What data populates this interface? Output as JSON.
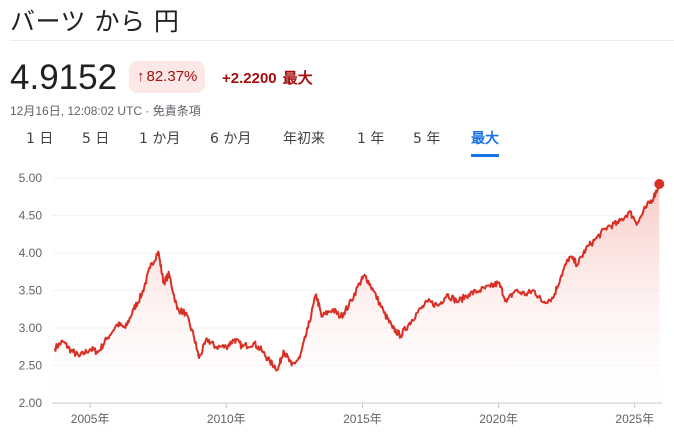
{
  "header": {
    "title": "バーツ から 円",
    "price": "4.9152",
    "change_pct": "82.37%",
    "change_arrow": "↑",
    "change_abs": "+2.2200",
    "change_period": "最大",
    "timestamp": "12月16日, 12:08:02 UTC · 免責条項"
  },
  "tabs": [
    {
      "label": "1 日",
      "active": false
    },
    {
      "label": "5 日",
      "active": false
    },
    {
      "label": "1 か月",
      "active": false
    },
    {
      "label": "6 か月",
      "active": false
    },
    {
      "label": "年初来",
      "active": false
    },
    {
      "label": "1 年",
      "active": false
    },
    {
      "label": "5 年",
      "active": false
    },
    {
      "label": "最大",
      "active": true
    }
  ],
  "colors": {
    "line": "#d93025",
    "fill_top": "#f8c5c0",
    "fill_bottom": "#ffffff",
    "active_tab": "#1a73e8",
    "negative": "#a50e0e"
  },
  "chart_data": {
    "type": "area",
    "ylim": [
      2.0,
      5.0
    ],
    "yticks": [
      "5.00",
      "4.50",
      "4.00",
      "3.50",
      "3.00",
      "2.50",
      "2.00"
    ],
    "ytick_values": [
      5.0,
      4.5,
      4.0,
      3.5,
      3.0,
      2.5,
      2.0
    ],
    "xlim": [
      2003.6,
      2026.0
    ],
    "xticks": [
      "2005年",
      "2010年",
      "2015年",
      "2020年",
      "2025年"
    ],
    "xtick_values": [
      2005,
      2010,
      2015,
      2020,
      2025
    ],
    "grid": true,
    "series": [
      {
        "x": [
          2003.7,
          2004.0,
          2004.3,
          2004.6,
          2005.0,
          2005.3,
          2005.6,
          2006.0,
          2006.3,
          2006.6,
          2006.9,
          2007.2,
          2007.5,
          2007.7,
          2007.9,
          2008.2,
          2008.5,
          2008.8,
          2009.0,
          2009.3,
          2009.6,
          2010.0,
          2010.3,
          2010.6,
          2011.0,
          2011.3,
          2011.6,
          2011.9,
          2012.1,
          2012.4,
          2012.7,
          2013.0,
          2013.3,
          2013.5,
          2013.9,
          2014.2,
          2014.5,
          2014.9,
          2015.1,
          2015.4,
          2015.8,
          2016.1,
          2016.4,
          2016.7,
          2017.0,
          2017.4,
          2017.8,
          2018.1,
          2018.5,
          2018.9,
          2019.3,
          2019.7,
          2020.0,
          2020.3,
          2020.6,
          2021.0,
          2021.3,
          2021.6,
          2022.0,
          2022.3,
          2022.6,
          2022.9,
          2023.2,
          2023.6,
          2024.0,
          2024.4,
          2024.8,
          2025.1,
          2025.4,
          2025.7,
          2025.9
        ],
        "values": [
          2.73,
          2.82,
          2.7,
          2.62,
          2.72,
          2.68,
          2.85,
          3.05,
          3.0,
          3.25,
          3.45,
          3.8,
          4.02,
          3.6,
          3.72,
          3.25,
          3.2,
          2.9,
          2.6,
          2.85,
          2.75,
          2.75,
          2.85,
          2.75,
          2.8,
          2.7,
          2.55,
          2.45,
          2.7,
          2.5,
          2.6,
          3.0,
          3.45,
          3.15,
          3.25,
          3.15,
          3.3,
          3.6,
          3.7,
          3.5,
          3.2,
          3.0,
          2.9,
          3.05,
          3.2,
          3.35,
          3.3,
          3.45,
          3.35,
          3.45,
          3.5,
          3.55,
          3.6,
          3.35,
          3.5,
          3.45,
          3.5,
          3.35,
          3.4,
          3.7,
          3.95,
          3.85,
          4.05,
          4.2,
          4.35,
          4.4,
          4.55,
          4.4,
          4.6,
          4.75,
          4.92
        ]
      }
    ]
  }
}
